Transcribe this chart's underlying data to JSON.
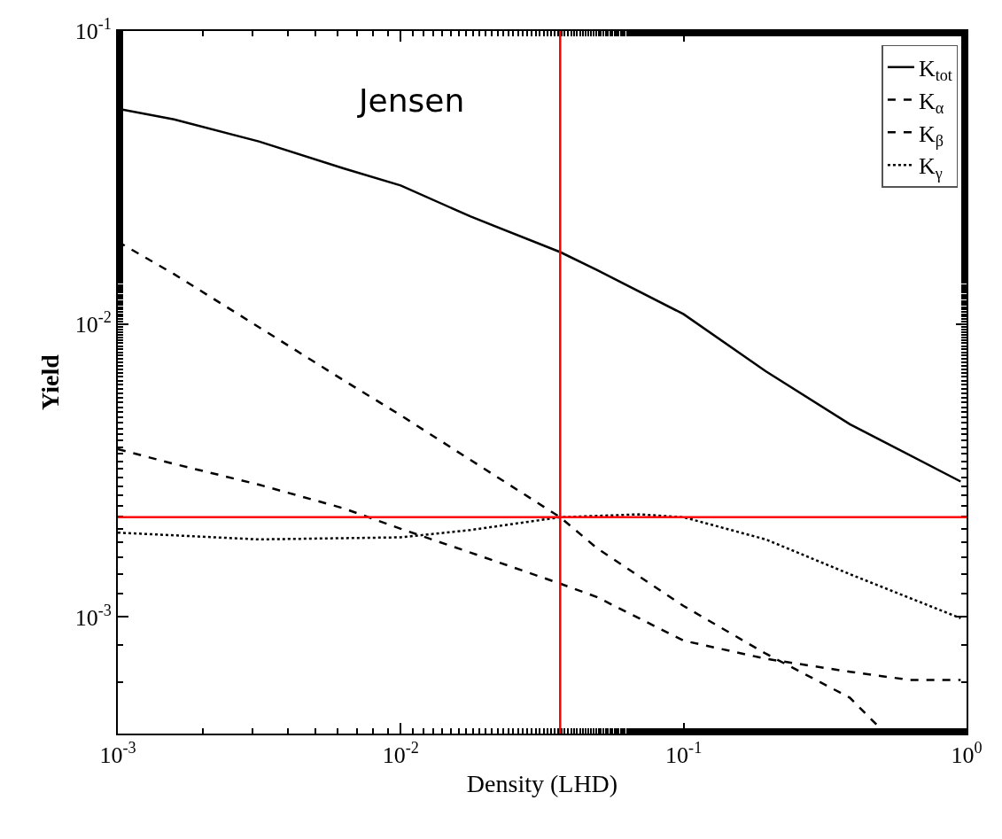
{
  "chart_data": {
    "type": "line",
    "xlabel": "Density (LHD)",
    "ylabel": "Yield",
    "log": "xy",
    "grid": false,
    "legend": "top right",
    "marker": "none",
    "xlim": [
      0.001,
      1
    ],
    "ylim": [
      0.0004,
      0.1
    ],
    "xticks": [
      {
        "value": 0.001,
        "label": "10$^{-3}$"
      },
      {
        "value": 0.01,
        "label": "10$^{-2}$"
      },
      {
        "value": 0.1,
        "label": "10$^{-1}$"
      },
      {
        "value": 1,
        "label": "10$^{0}$"
      }
    ],
    "yticks": [
      {
        "value": 0.001,
        "label": "10$^{-3}$"
      },
      {
        "value": 0.01,
        "label": "10$^{-2}$"
      },
      {
        "value": 0.1,
        "label": "10$^{-1}$"
      }
    ],
    "annotations": [
      "Jensen"
    ],
    "ref_lines": [
      {
        "axis": "x",
        "value": 0.0366,
        "label": null,
        "color": "#ff0000"
      },
      {
        "axis": "y",
        "value": 0.00219,
        "label": null,
        "color": "#ff0000"
      }
    ],
    "series": [
      {
        "name": "K$_{tot}$",
        "color": "#000000",
        "line_style": "solid",
        "x": [
          0.001,
          0.00158,
          0.00315,
          0.00627,
          0.01,
          0.0176,
          0.0366,
          0.0493,
          0.1,
          0.195,
          0.387,
          0.953
        ],
        "values": [
          0.0543,
          0.0499,
          0.042,
          0.034,
          0.0297,
          0.0233,
          0.0176,
          0.0153,
          0.0108,
          0.0069,
          0.00455,
          0.0029
        ]
      },
      {
        "name": "K$_{α}$",
        "color": "#000000",
        "line_style": "dashed",
        "x": [
          0.001,
          0.00158,
          0.00315,
          0.00627,
          0.01,
          0.0176,
          0.0366,
          0.0493,
          0.1,
          0.195,
          0.387,
          0.509
        ],
        "values": [
          0.0191,
          0.0148,
          0.00976,
          0.00643,
          0.00488,
          0.00344,
          0.00219,
          0.00172,
          0.00109,
          0.00075,
          0.00053,
          0.000406
        ]
      },
      {
        "name": "K$_{β}$",
        "color": "#000000",
        "line_style": "dashed",
        "x": [
          0.001,
          0.00158,
          0.00315,
          0.00627,
          0.01,
          0.0176,
          0.0366,
          0.0493,
          0.1,
          0.195,
          0.387,
          0.628,
          0.953
        ],
        "values": [
          0.00374,
          0.00333,
          0.00283,
          0.00235,
          0.002,
          0.00166,
          0.0013,
          0.00117,
          0.00083,
          0.00072,
          0.00065,
          0.00061,
          0.00061
        ]
      },
      {
        "name": "K$_{γ}$",
        "color": "#000000",
        "line_style": "dotted",
        "x": [
          0.001,
          0.00315,
          0.01,
          0.0176,
          0.0366,
          0.0695,
          0.1,
          0.195,
          0.387,
          0.953
        ],
        "values": [
          0.00194,
          0.00184,
          0.00187,
          0.00198,
          0.00219,
          0.00224,
          0.00219,
          0.00184,
          0.0014,
          0.00099
        ]
      }
    ]
  }
}
